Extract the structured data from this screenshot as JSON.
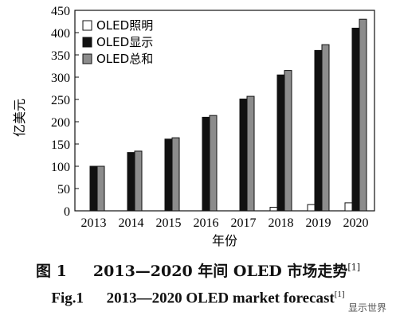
{
  "chart_data": {
    "type": "bar",
    "categories": [
      "2013",
      "2014",
      "2015",
      "2016",
      "2017",
      "2018",
      "2019",
      "2020"
    ],
    "series": [
      {
        "name": "OLED照明",
        "values": [
          0,
          0,
          0,
          0,
          0,
          8,
          14,
          18
        ],
        "color": "#ffffff"
      },
      {
        "name": "OLED显示",
        "values": [
          100,
          131,
          161,
          210,
          251,
          305,
          360,
          410
        ],
        "color": "#111111"
      },
      {
        "name": "OLED总和",
        "values": [
          100,
          134,
          164,
          214,
          257,
          315,
          373,
          430
        ],
        "color": "#8c8c8c"
      }
    ],
    "xlabel": "年份",
    "ylabel": "亿美元",
    "ylim": [
      0,
      450
    ],
    "yticks": [
      0,
      50,
      100,
      150,
      200,
      250,
      300,
      350,
      400,
      450
    ],
    "legend_position": "top-left",
    "grid": false
  },
  "captions": {
    "cn_prefix": "图 1",
    "cn_text": "2013—2020 年间 OLED 市场走势",
    "cn_ref": "[1]",
    "en_prefix": "Fig.1",
    "en_text": "2013—2020 OLED market forecast",
    "en_ref": "[1]"
  },
  "watermark": "显示世界"
}
